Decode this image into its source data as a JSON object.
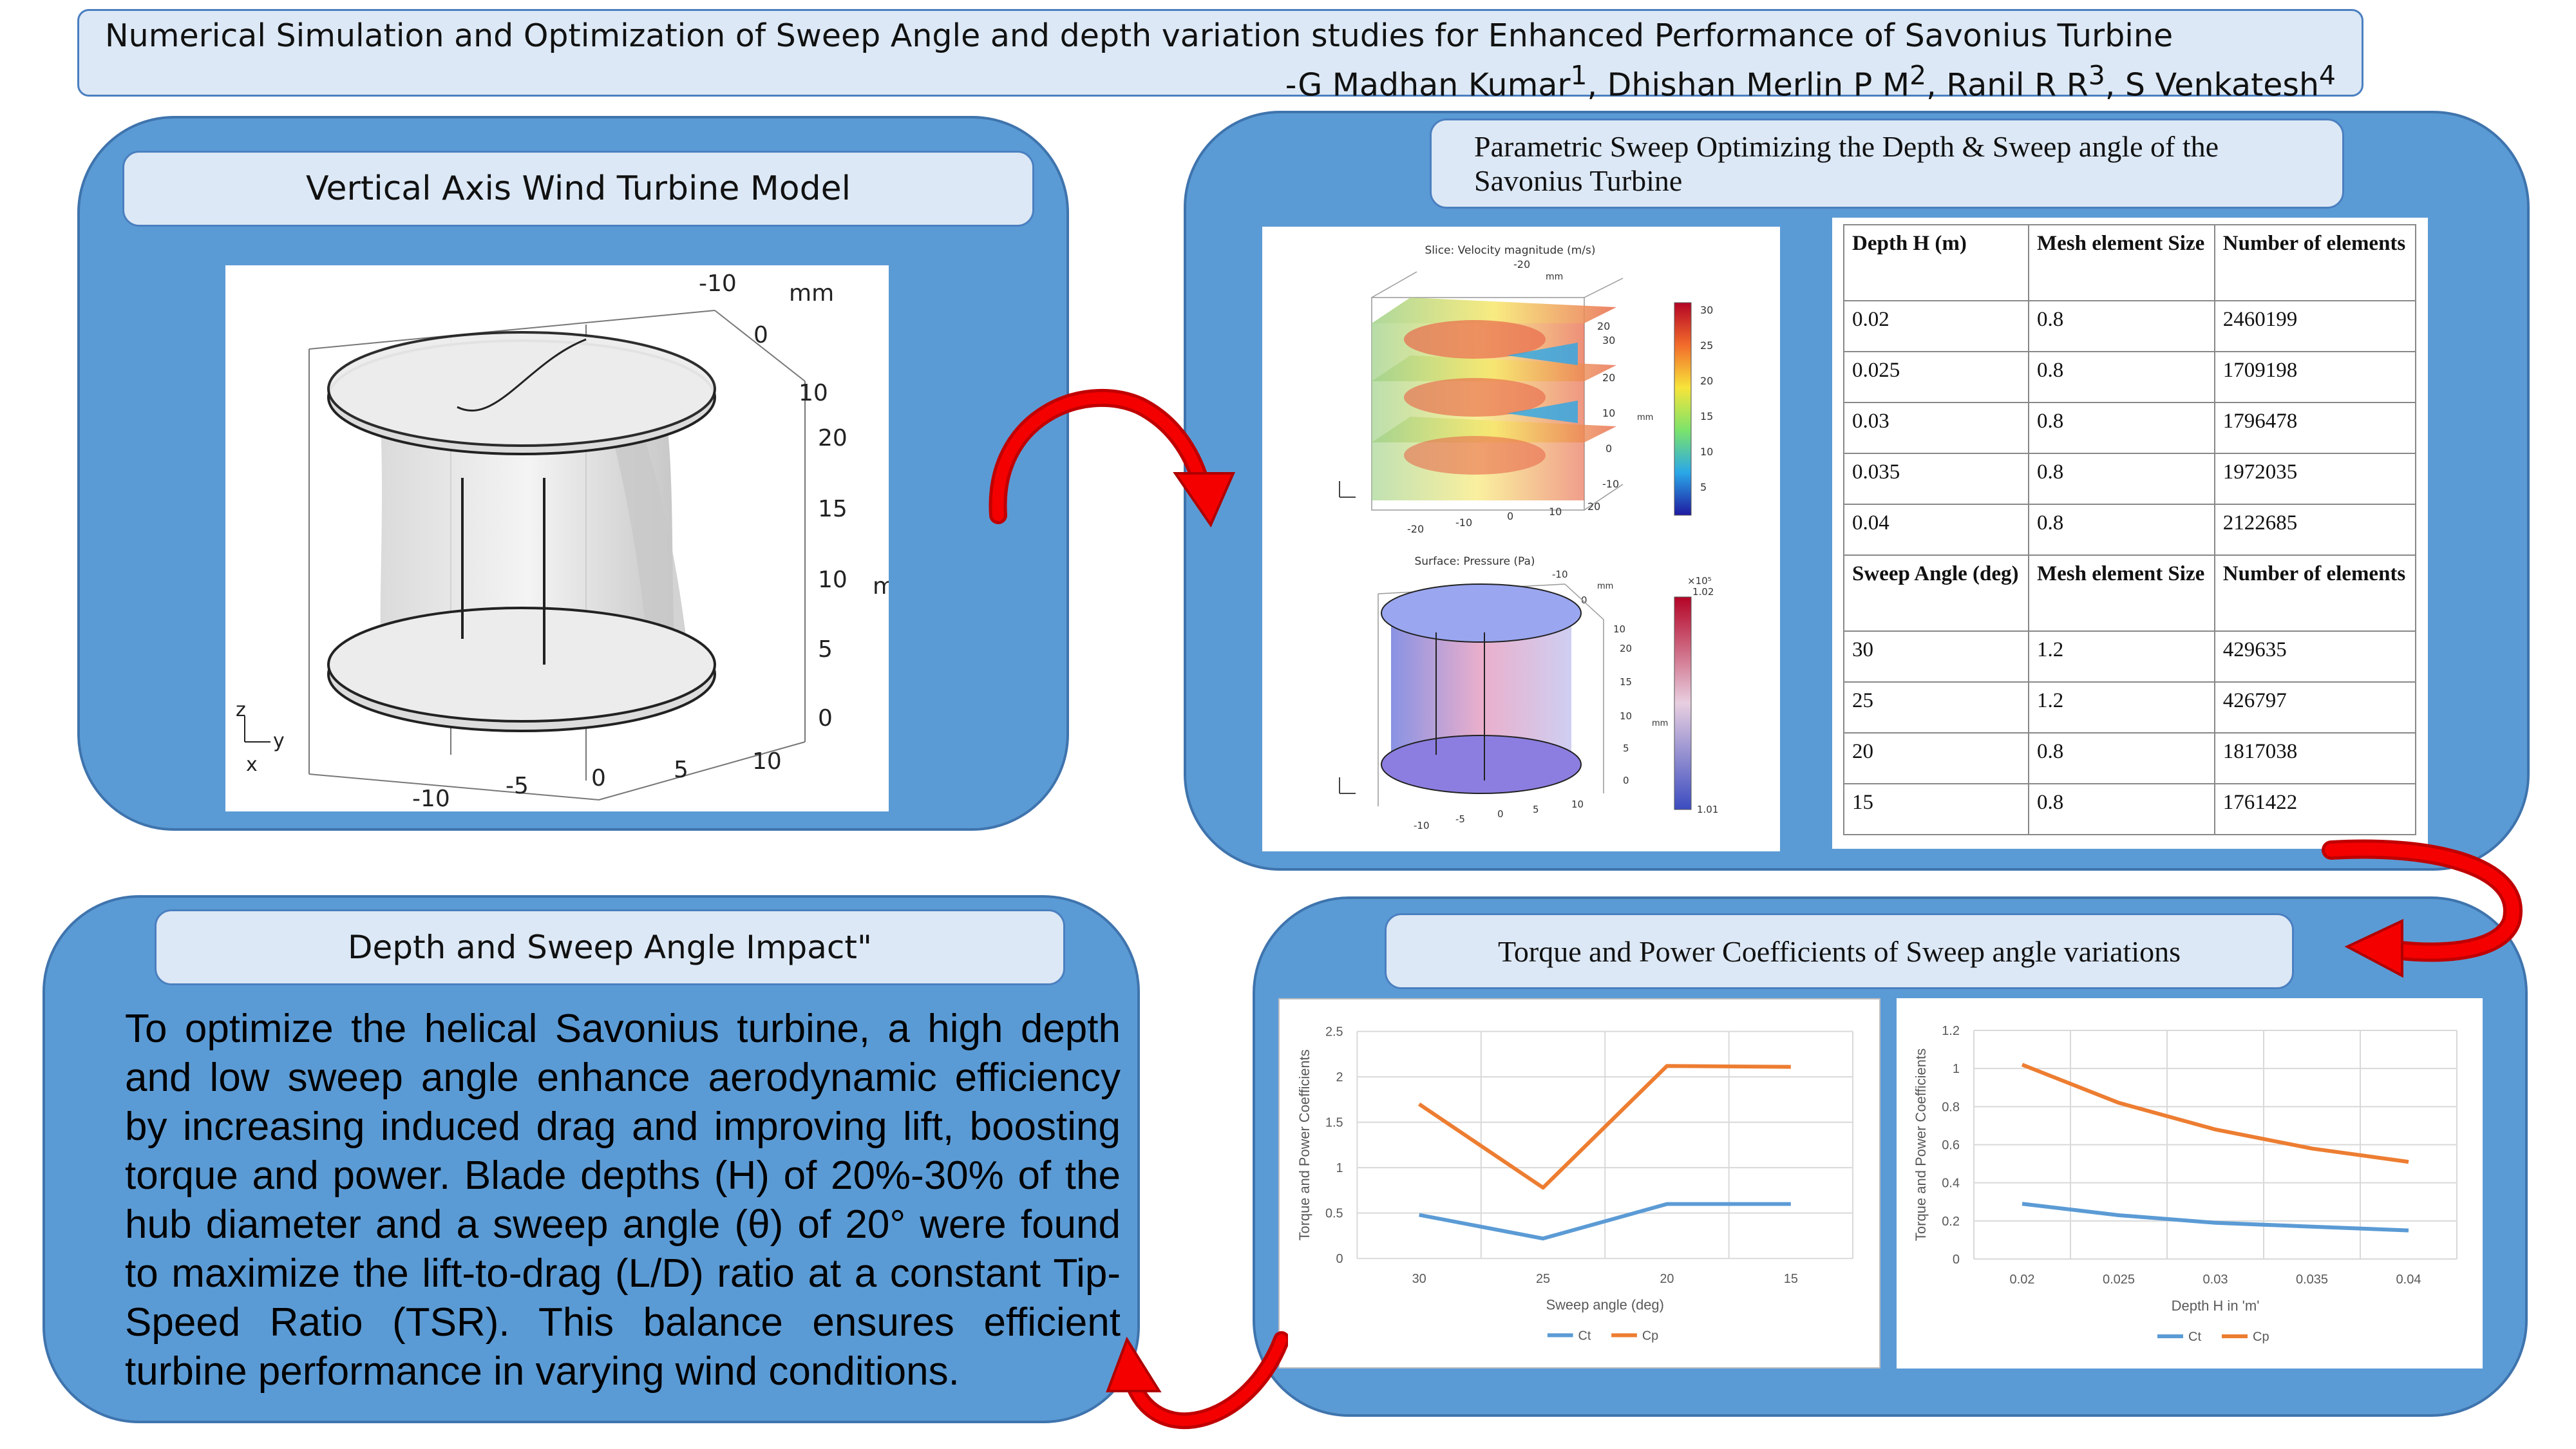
{
  "header": {
    "title": "Numerical Simulation and Optimization of Sweep Angle and depth variation studies for Enhanced Performance of Savonius Turbine",
    "authors_prefix": "-G Madhan Kumar",
    "a1": "1",
    "author2": ", Dhishan Merlin P M",
    "a2": "2",
    "author3": ", Ranil R R",
    "a3": "3",
    "author4": ", S Venkatesh",
    "a4": "4"
  },
  "panel_model": {
    "heading": "Vertical Axis Wind Turbine Model",
    "axis_unit": "mm",
    "axis_unit_right": "m",
    "top_ticks": [
      "-10",
      "0",
      "10"
    ],
    "z_ticks": [
      "20",
      "15",
      "10",
      "5",
      "0"
    ],
    "bottom_ticks": [
      "-10",
      "-5",
      "0",
      "5",
      "10"
    ],
    "axis_z": "z",
    "axis_y": "y",
    "axis_x": "x"
  },
  "panel_sweep": {
    "heading": "Parametric Sweep Optimizing the Depth & Sweep angle of the Savonius Turbine",
    "velocity_title": "Slice: Velocity magnitude (m/s)",
    "velocity_scale": [
      "30",
      "25",
      "20",
      "15",
      "10",
      "5"
    ],
    "velocity_ticks_top": [
      "-20",
      "mm"
    ],
    "velocity_ticks_side": [
      "20",
      "30",
      "20",
      "10",
      "0",
      "-10"
    ],
    "velocity_ticks_side_unit": "mm",
    "velocity_ticks_bottom": [
      "-20",
      "-10",
      "0",
      "10",
      "20"
    ],
    "pressure_title": "Surface: Pressure (Pa)",
    "pressure_multiplier": "×10⁵",
    "pressure_max": "1.02",
    "pressure_min": "1.01",
    "pressure_ticks_top": [
      "-10",
      "mm",
      "0"
    ],
    "pressure_ticks_side": [
      "10",
      "20",
      "15",
      "10",
      "5",
      "0"
    ],
    "pressure_ticks_side_unit": "mm",
    "pressure_ticks_bottom": [
      "-10",
      "-5",
      "0",
      "5",
      "10"
    ],
    "table_depth_headers": [
      "Depth H (m)",
      "Mesh element Size",
      "Number of elements"
    ],
    "table_depth_rows": [
      [
        "0.02",
        "0.8",
        "2460199"
      ],
      [
        "0.025",
        "0.8",
        "1709198"
      ],
      [
        "0.03",
        "0.8",
        "1796478"
      ],
      [
        "0.035",
        "0.8",
        "1972035"
      ],
      [
        "0.04",
        "0.8",
        "2122685"
      ]
    ],
    "table_sweep_headers": [
      "Sweep Angle (deg)",
      "Mesh element Size",
      "Number of elements"
    ],
    "table_sweep_rows": [
      [
        "30",
        "1.2",
        "429635"
      ],
      [
        "25",
        "1.2",
        "426797"
      ],
      [
        "20",
        "0.8",
        "1817038"
      ],
      [
        "15",
        "0.8",
        "1761422"
      ]
    ]
  },
  "panel_impact": {
    "heading": "Depth and Sweep Angle Impact\"",
    "body": "To optimize the helical Savonius turbine, a high depth and low sweep angle enhance aerodynamic efficiency by increasing induced drag and improving lift, boosting torque and power. Blade depths (H) of 20%-30% of the hub diameter and a sweep angle (θ) of 20° were found to maximize the lift-to-drag (L/D) ratio at a constant Tip-Speed Ratio (TSR). This balance ensures efficient turbine performance in varying wind conditions."
  },
  "panel_coeff": {
    "heading": "Torque and Power Coefficients of Sweep angle variations"
  },
  "colors": {
    "ct": "#5b9bd5",
    "cp": "#ed7d31",
    "panel": "#5b9bd5",
    "heading_bg": "#dce8f5",
    "arrow": "#e00000"
  },
  "chart_data": [
    {
      "type": "line",
      "categories": [
        "30",
        "25",
        "20",
        "15"
      ],
      "series": [
        {
          "name": "Ct",
          "values": [
            0.48,
            0.22,
            0.6,
            0.6
          ]
        },
        {
          "name": "Cp",
          "values": [
            1.7,
            0.78,
            2.12,
            2.11
          ]
        }
      ],
      "xlabel": "Sweep angle (deg)",
      "ylabel": "Torque and Power Coefficients",
      "ylim": [
        0,
        2.5
      ],
      "yticks": [
        "0",
        "0.5",
        "1",
        "1.5",
        "2",
        "2.5"
      ],
      "legend": "bottom",
      "grid": true
    },
    {
      "type": "line",
      "categories": [
        "0.02",
        "0.025",
        "0.03",
        "0.035",
        "0.04"
      ],
      "series": [
        {
          "name": "Ct",
          "values": [
            0.29,
            0.23,
            0.19,
            0.17,
            0.15
          ]
        },
        {
          "name": "Cp",
          "values": [
            1.02,
            0.82,
            0.68,
            0.58,
            0.51
          ]
        }
      ],
      "xlabel": "Depth H in 'm'",
      "ylabel": "Torque and Power Coefficients",
      "ylim": [
        0,
        1.2
      ],
      "yticks": [
        "0",
        "0.2",
        "0.4",
        "0.6",
        "0.8",
        "1",
        "1.2"
      ],
      "legend": "bottom",
      "grid": true
    }
  ]
}
